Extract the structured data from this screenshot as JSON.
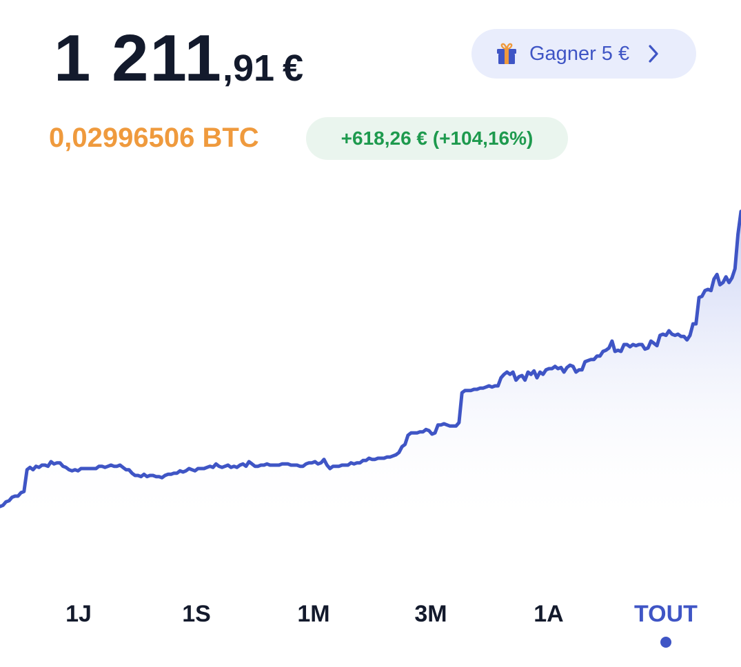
{
  "balance": {
    "integer": "1 211",
    "decimal": ",91",
    "currency": "€"
  },
  "earn_button": {
    "label": "Gagner 5 €",
    "icon": "gift-icon"
  },
  "btc_amount": "0,02996506 BTC",
  "gain": {
    "label": "+618,26 € (+104,16%)",
    "color": "#1e9a4e"
  },
  "colors": {
    "accent": "#3f55c5",
    "btc": "#ef9a3d",
    "text": "#131a2c"
  },
  "time_ranges": [
    "1J",
    "1S",
    "1M",
    "3M",
    "1A",
    "TOUT"
  ],
  "selected_range": "TOUT",
  "chart_data": {
    "type": "area",
    "title": "",
    "xlabel": "",
    "ylabel": "",
    "grid": false,
    "series": [
      {
        "values": [
          593,
          594,
          597,
          598,
          601,
          602,
          602,
          605,
          606,
          625,
          627,
          625,
          628,
          627,
          629,
          629,
          628,
          632,
          630,
          631,
          631,
          628,
          627,
          625,
          624,
          625,
          624,
          626,
          626,
          626,
          626,
          626,
          626,
          628,
          628,
          627,
          628,
          629,
          628,
          628,
          629,
          627,
          625,
          625,
          622,
          620,
          620,
          619,
          621,
          619,
          620,
          620,
          619,
          619,
          618,
          620,
          621,
          621,
          622,
          622,
          624,
          623,
          624,
          626,
          625,
          624,
          626,
          626,
          626,
          627,
          628,
          627,
          630,
          628,
          627,
          628,
          629,
          627,
          628,
          627,
          629,
          630,
          628,
          632,
          630,
          628,
          628,
          629,
          629,
          630,
          629,
          629,
          629,
          629,
          630,
          630,
          630,
          629,
          629,
          629,
          628,
          628,
          630,
          631,
          631,
          632,
          630,
          631,
          634,
          629,
          626,
          628,
          628,
          628,
          629,
          629,
          629,
          631,
          630,
          631,
          631,
          633,
          633,
          635,
          634,
          634,
          635,
          635,
          635,
          636,
          636,
          637,
          638,
          640,
          645,
          647,
          655,
          657,
          657,
          657,
          658,
          658,
          660,
          659,
          656,
          657,
          664,
          664,
          665,
          664,
          663,
          663,
          663,
          666,
          692,
          694,
          694,
          694,
          695,
          695,
          696,
          696,
          697,
          698,
          697,
          698,
          698,
          705,
          708,
          710,
          708,
          710,
          703,
          706,
          707,
          703,
          710,
          708,
          711,
          705,
          710,
          708,
          712,
          713,
          713,
          715,
          713,
          714,
          710,
          714,
          716,
          715,
          710,
          712,
          712,
          719,
          720,
          721,
          721,
          724,
          724,
          728,
          729,
          731,
          737,
          728,
          729,
          728,
          734,
          734,
          732,
          734,
          733,
          734,
          734,
          730,
          731,
          737,
          735,
          733,
          742,
          743,
          742,
          746,
          743,
          742,
          743,
          741,
          741,
          738,
          742,
          752,
          752,
          775,
          776,
          781,
          782,
          781,
          791,
          795,
          786,
          788,
          793,
          788,
          792,
          800,
          830,
          850
        ]
      }
    ],
    "xlim": [
      0,
      1
    ],
    "ylim": [
      560,
      860
    ]
  }
}
